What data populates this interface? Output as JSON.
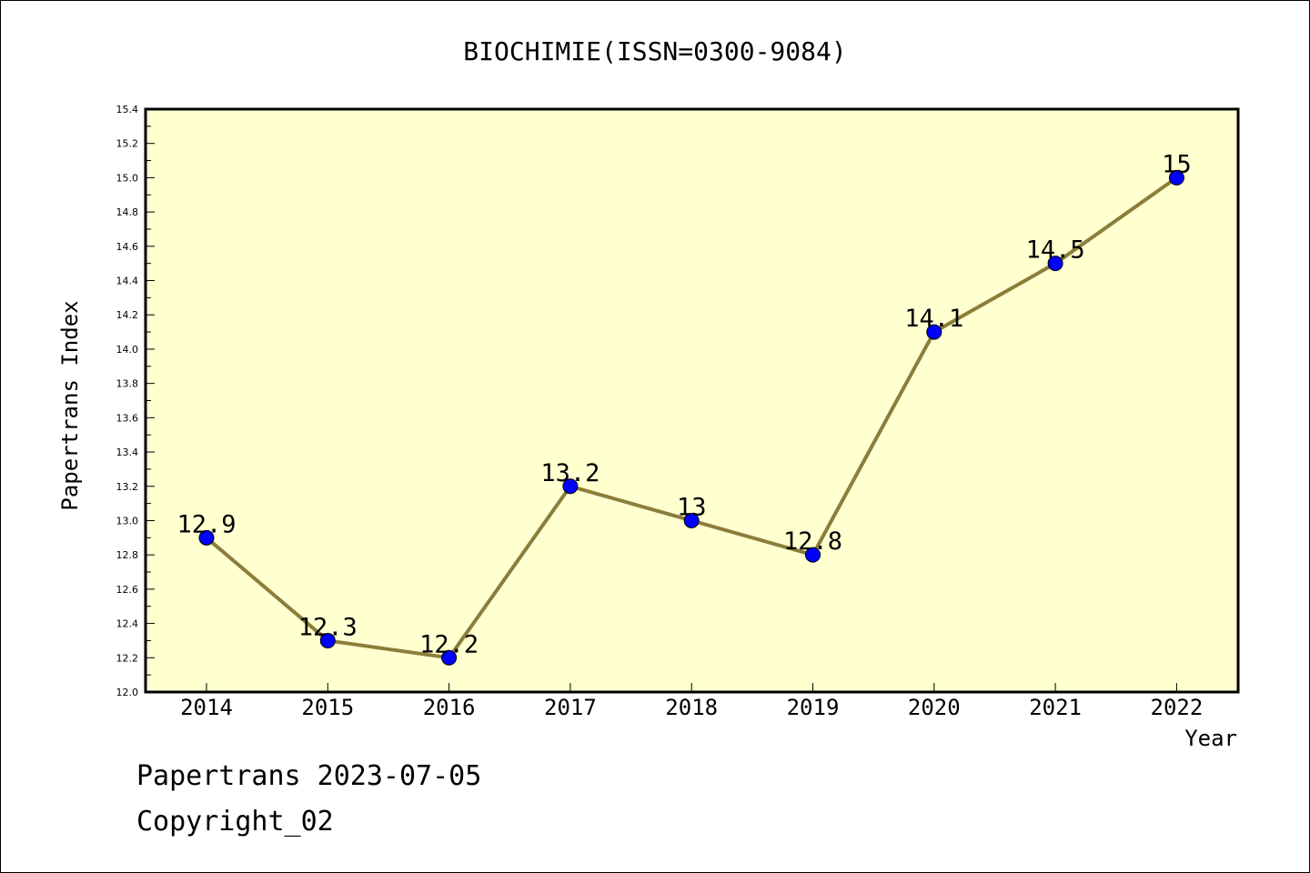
{
  "footer": {
    "line1": "Papertrans 2023-07-05",
    "line2": "Copyright_02"
  },
  "colors": {
    "background": "#ffffff",
    "plot_bg": "#ffffd0",
    "line": "#8b7d3a",
    "marker": "#0000ff"
  },
  "chart_data": {
    "type": "line",
    "title": "BIOCHIMIE(ISSN=0300-9084)",
    "xlabel": "Year",
    "ylabel": "Papertrans Index",
    "categories": [
      "2014",
      "2015",
      "2016",
      "2017",
      "2018",
      "2019",
      "2020",
      "2021",
      "2022"
    ],
    "series": [
      {
        "values": [
          12.9,
          12.3,
          12.2,
          13.2,
          13.0,
          12.8,
          14.1,
          14.5,
          15.0
        ],
        "labels": [
          "12.9",
          "12.3",
          "12.2",
          "13.2",
          "13",
          "12.8",
          "14.1",
          "14.5",
          "15"
        ]
      }
    ],
    "ylim": [
      12.0,
      15.4
    ],
    "yticks": [
      "12.0",
      "12.2",
      "12.4",
      "12.6",
      "12.8",
      "13.0",
      "13.2",
      "13.4",
      "13.6",
      "13.8",
      "14.0",
      "14.2",
      "14.4",
      "14.6",
      "14.8",
      "15.0",
      "15.2",
      "15.4"
    ],
    "grid": false,
    "legend": "none"
  }
}
